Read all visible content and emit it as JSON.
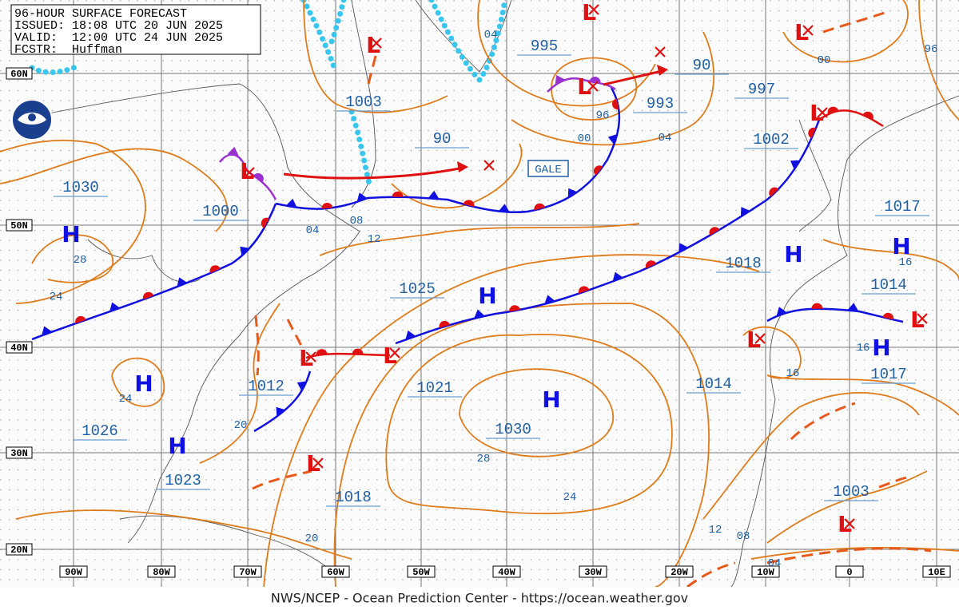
{
  "header": {
    "lines": [
      "96-HOUR SURFACE FORECAST",
      "ISSUED: 18:08 UTC 20 JUN 2025",
      "VALID:  12:00 UTC 24 JUN 2025",
      "FCSTR:  Huffman"
    ]
  },
  "latitude_labels": [
    "60N",
    "50N",
    "40N",
    "30N",
    "20N"
  ],
  "longitude_labels": [
    "90W",
    "80W",
    "70W",
    "60W",
    "50W",
    "40W",
    "30W",
    "20W",
    "10W",
    "0",
    "10E"
  ],
  "pressure_labels": [
    "1003",
    "90",
    "995",
    "993",
    "90",
    "997",
    "1002",
    "1030",
    "1000",
    "1017",
    "1018",
    "1014",
    "1025",
    "1021",
    "1030",
    "1014",
    "1017",
    "1012",
    "1026",
    "1023",
    "1018",
    "1003"
  ],
  "isobar_labels": [
    "04",
    "00",
    "96",
    "96",
    "00",
    "04",
    "08",
    "04",
    "12",
    "28",
    "24",
    "16",
    "16",
    "16",
    "24",
    "20",
    "28",
    "24",
    "20",
    "12",
    "08",
    "04"
  ],
  "highs": [
    "H",
    "H",
    "H",
    "H",
    "H",
    "H",
    "H",
    "H"
  ],
  "lows": [
    "L",
    "L",
    "L",
    "L",
    "L",
    "L",
    "L",
    "L",
    "L",
    "L",
    "L",
    "L"
  ],
  "gale_label": "GALE",
  "footer": "NWS/NCEP - Ocean Prediction Center - https://ocean.weather.gov"
}
